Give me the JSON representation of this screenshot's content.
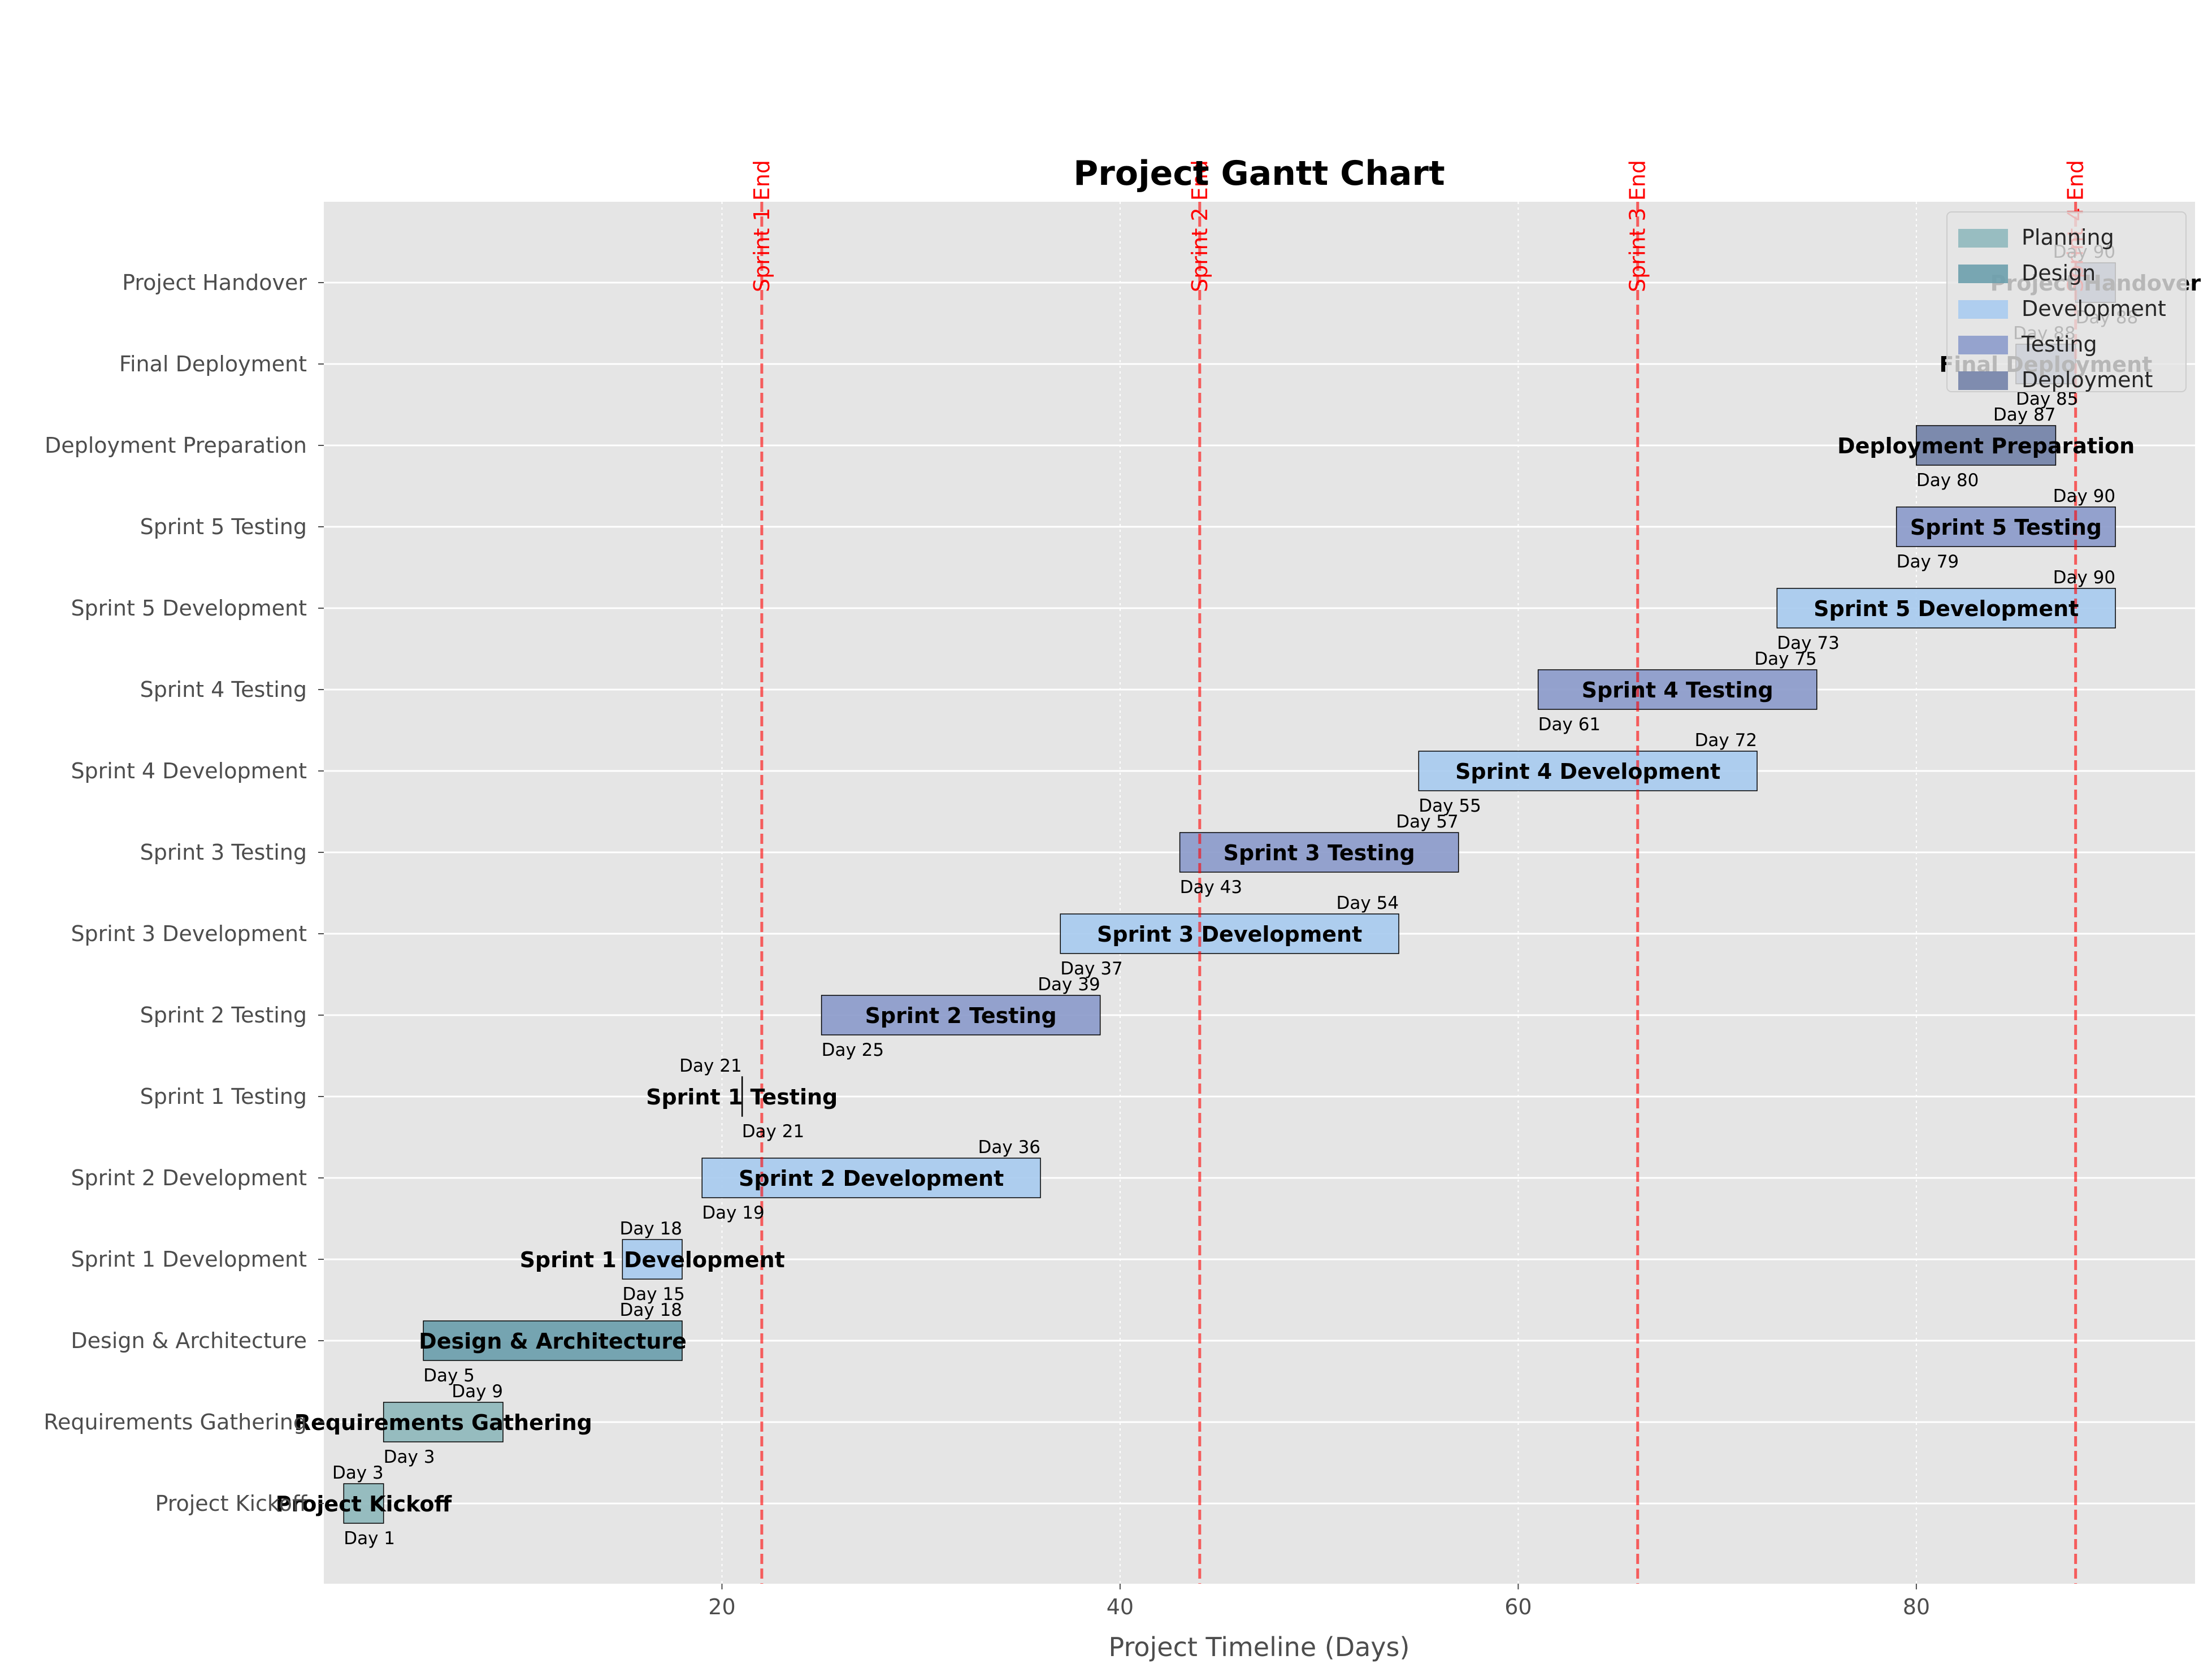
{
  "chart_data": {
    "type": "gantt",
    "title": "Project Gantt Chart",
    "xlabel": "Project Timeline (Days)",
    "ylabel": "",
    "xlim": [
      0,
      94
    ],
    "xticks": [
      20,
      40,
      60,
      80
    ],
    "start_prefix": "Day",
    "phase_colors": {
      "Planning": "#8fb8bc",
      "Design": "#6b9eac",
      "Development": "#a8cbef",
      "Testing": "#8c9bcb",
      "Deployment": "#7382a8"
    },
    "legend": [
      "Planning",
      "Design",
      "Development",
      "Testing",
      "Deployment"
    ],
    "legend_position": "upper right",
    "grid": true,
    "tasks": [
      {
        "name": "Project Kickoff",
        "start": 1,
        "end": 3,
        "phase": "Planning"
      },
      {
        "name": "Requirements Gathering",
        "start": 3,
        "end": 9,
        "phase": "Planning"
      },
      {
        "name": "Design & Architecture",
        "start": 5,
        "end": 18,
        "phase": "Design"
      },
      {
        "name": "Sprint 1 Development",
        "start": 15,
        "end": 18,
        "phase": "Development"
      },
      {
        "name": "Sprint 2 Development",
        "start": 19,
        "end": 36,
        "phase": "Development"
      },
      {
        "name": "Sprint 1 Testing",
        "start": 21,
        "end": 21,
        "phase": "Testing"
      },
      {
        "name": "Sprint 2 Testing",
        "start": 25,
        "end": 39,
        "phase": "Testing"
      },
      {
        "name": "Sprint 3 Development",
        "start": 37,
        "end": 54,
        "phase": "Development"
      },
      {
        "name": "Sprint 3 Testing",
        "start": 43,
        "end": 57,
        "phase": "Testing"
      },
      {
        "name": "Sprint 4 Development",
        "start": 55,
        "end": 72,
        "phase": "Development"
      },
      {
        "name": "Sprint 4 Testing",
        "start": 61,
        "end": 75,
        "phase": "Testing"
      },
      {
        "name": "Sprint 5 Development",
        "start": 73,
        "end": 90,
        "phase": "Development"
      },
      {
        "name": "Sprint 5 Testing",
        "start": 79,
        "end": 90,
        "phase": "Testing"
      },
      {
        "name": "Deployment Preparation",
        "start": 80,
        "end": 87,
        "phase": "Deployment"
      },
      {
        "name": "Final Deployment",
        "start": 85,
        "end": 88,
        "phase": "Deployment"
      },
      {
        "name": "Project Handover",
        "start": 88,
        "end": 90,
        "phase": "Deployment"
      }
    ],
    "sprint_markers": [
      {
        "label": "Sprint 1 End",
        "day": 22
      },
      {
        "label": "Sprint 2 End",
        "day": 44
      },
      {
        "label": "Sprint 3 End",
        "day": 66
      },
      {
        "label": "Sprint 4 End",
        "day": 88
      }
    ],
    "marker_color": "#ff0000"
  }
}
